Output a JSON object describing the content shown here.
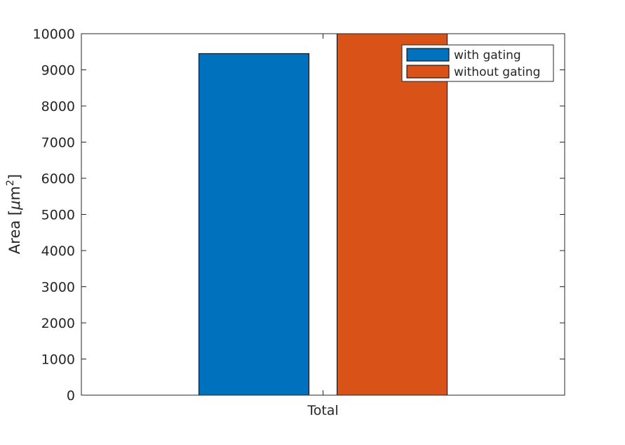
{
  "chart_data": {
    "type": "bar",
    "categories": [
      "Total"
    ],
    "series": [
      {
        "name": "with gating",
        "values": [
          9450
        ],
        "color": "#0072BD"
      },
      {
        "name": "without gating",
        "values": [
          10000
        ],
        "color": "#D95319"
      }
    ],
    "xlabel": "",
    "ylabel": "Area [μm²]",
    "ylabel_parts": {
      "prefix": "Area [",
      "mu": "μ",
      "unit": "m",
      "sup": "2",
      "suffix": "]"
    },
    "ylim": [
      0,
      10000
    ],
    "yticks": [
      0,
      1000,
      2000,
      3000,
      4000,
      5000,
      6000,
      7000,
      8000,
      9000,
      10000
    ],
    "grid": false,
    "legend_position": "top-right",
    "box": true
  }
}
